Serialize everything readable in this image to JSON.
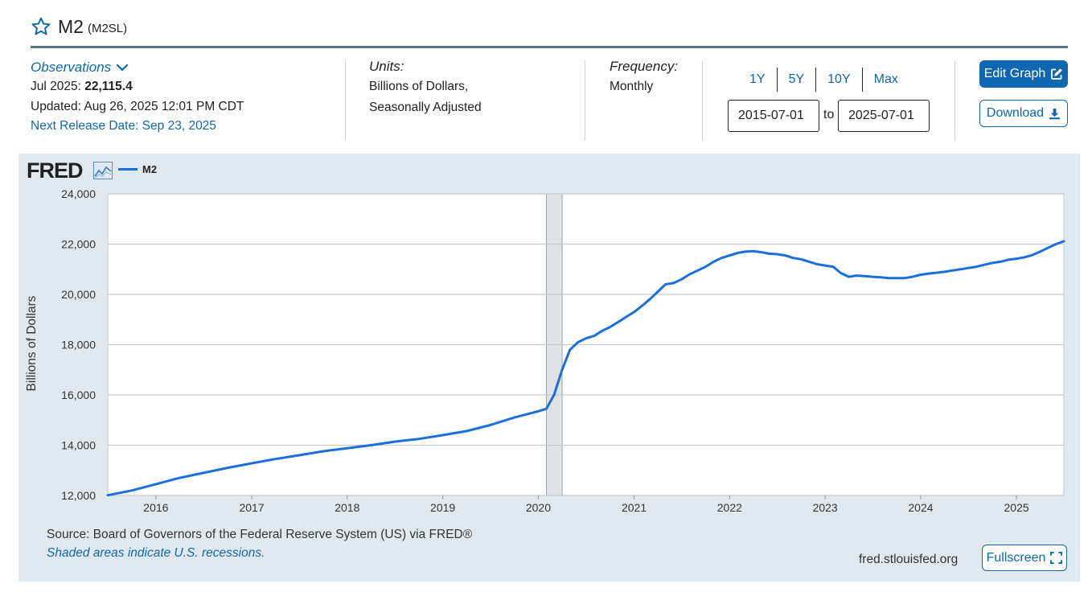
{
  "header": {
    "title": "M2",
    "series_id": "(M2SL)"
  },
  "meta": {
    "observations_label": "Observations",
    "latest_period": "Jul 2025:",
    "latest_value": "22,115.4",
    "updated": "Updated: Aug 26, 2025 12:01 PM CDT",
    "next_release": "Next Release Date: Sep 23, 2025",
    "units_label": "Units:",
    "units_line1": "Billions of Dollars,",
    "units_line2": "Seasonally Adjusted",
    "frequency_label": "Frequency:",
    "frequency_value": "Monthly"
  },
  "controls": {
    "ranges": [
      "1Y",
      "5Y",
      "10Y",
      "Max"
    ],
    "start_date": "2015-07-01",
    "to_label": "to",
    "end_date": "2025-07-01",
    "edit_label": "Edit Graph",
    "download_label": "Download",
    "fullscreen_label": "Fullscreen"
  },
  "panel": {
    "logo": "FRED",
    "source": "Source: Board of Governors of the Federal Reserve System (US) via FRED®",
    "recession_note": "Shaded areas indicate U.S. recessions.",
    "site": "fred.stlouisfed.org"
  },
  "colors": {
    "accent": "#0f67b1",
    "series": "#1a6fd9",
    "panel_bg": "#e1e9f0",
    "recession": "#dfe3e8"
  },
  "icons": {
    "star": "star-icon",
    "chevron": "chevron-down-icon",
    "edit": "edit-icon",
    "download": "download-icon",
    "fullscreen": "fullscreen-icon",
    "graph": "graph-icon"
  },
  "chart_data": {
    "type": "line",
    "title": "",
    "xlabel": "",
    "ylabel": "Billions of Dollars",
    "ylim": [
      12000,
      24000
    ],
    "yticks": [
      12000,
      14000,
      16000,
      18000,
      20000,
      22000,
      24000
    ],
    "ytick_labels": [
      "12,000",
      "14,000",
      "16,000",
      "18,000",
      "20,000",
      "22,000",
      "24,000"
    ],
    "xlim": [
      "2015-07-01",
      "2025-07-01"
    ],
    "xtick_labels": [
      "2016",
      "2017",
      "2018",
      "2019",
      "2020",
      "2021",
      "2022",
      "2023",
      "2024",
      "2025"
    ],
    "xtick_dates": [
      "2016-01-01",
      "2017-01-01",
      "2018-01-01",
      "2019-01-01",
      "2020-01-01",
      "2021-01-01",
      "2022-01-01",
      "2023-01-01",
      "2024-01-01",
      "2025-01-01"
    ],
    "grid": true,
    "legend": "top-left",
    "recessions": [
      {
        "start": "2020-02-01",
        "end": "2020-04-01"
      }
    ],
    "series": [
      {
        "name": "M2",
        "x": [
          "2015-07-01",
          "2015-10-01",
          "2016-01-01",
          "2016-04-01",
          "2016-07-01",
          "2016-10-01",
          "2017-01-01",
          "2017-04-01",
          "2017-07-01",
          "2017-10-01",
          "2018-01-01",
          "2018-04-01",
          "2018-07-01",
          "2018-10-01",
          "2019-01-01",
          "2019-04-01",
          "2019-07-01",
          "2019-10-01",
          "2020-01-01",
          "2020-02-01",
          "2020-03-01",
          "2020-04-01",
          "2020-05-01",
          "2020-06-01",
          "2020-07-01",
          "2020-08-01",
          "2020-09-01",
          "2020-10-01",
          "2020-11-01",
          "2020-12-01",
          "2021-01-01",
          "2021-02-01",
          "2021-03-01",
          "2021-04-01",
          "2021-05-01",
          "2021-06-01",
          "2021-07-01",
          "2021-08-01",
          "2021-09-01",
          "2021-10-01",
          "2021-11-01",
          "2021-12-01",
          "2022-01-01",
          "2022-02-01",
          "2022-03-01",
          "2022-04-01",
          "2022-05-01",
          "2022-06-01",
          "2022-07-01",
          "2022-08-01",
          "2022-09-01",
          "2022-10-01",
          "2022-11-01",
          "2022-12-01",
          "2023-01-01",
          "2023-02-01",
          "2023-03-01",
          "2023-04-01",
          "2023-05-01",
          "2023-06-01",
          "2023-07-01",
          "2023-08-01",
          "2023-09-01",
          "2023-10-01",
          "2023-11-01",
          "2023-12-01",
          "2024-01-01",
          "2024-02-01",
          "2024-03-01",
          "2024-04-01",
          "2024-05-01",
          "2024-06-01",
          "2024-07-01",
          "2024-08-01",
          "2024-09-01",
          "2024-10-01",
          "2024-11-01",
          "2024-12-01",
          "2025-01-01",
          "2025-02-01",
          "2025-03-01",
          "2025-04-01",
          "2025-05-01",
          "2025-06-01",
          "2025-07-01"
        ],
        "values": [
          12010,
          12200,
          12450,
          12700,
          12900,
          13100,
          13280,
          13450,
          13600,
          13760,
          13880,
          14000,
          14140,
          14250,
          14400,
          14560,
          14800,
          15100,
          15350,
          15450,
          16000,
          17000,
          17800,
          18100,
          18250,
          18350,
          18550,
          18700,
          18900,
          19100,
          19300,
          19550,
          19800,
          20100,
          20400,
          20450,
          20600,
          20800,
          20950,
          21100,
          21300,
          21450,
          21550,
          21650,
          21700,
          21720,
          21680,
          21620,
          21600,
          21550,
          21450,
          21400,
          21300,
          21200,
          21150,
          21100,
          20850,
          20700,
          20750,
          20730,
          20700,
          20680,
          20650,
          20650,
          20650,
          20700,
          20780,
          20830,
          20860,
          20900,
          20950,
          21000,
          21050,
          21100,
          21180,
          21250,
          21300,
          21380,
          21420,
          21480,
          21560,
          21700,
          21850,
          22000,
          22115
        ]
      }
    ]
  }
}
